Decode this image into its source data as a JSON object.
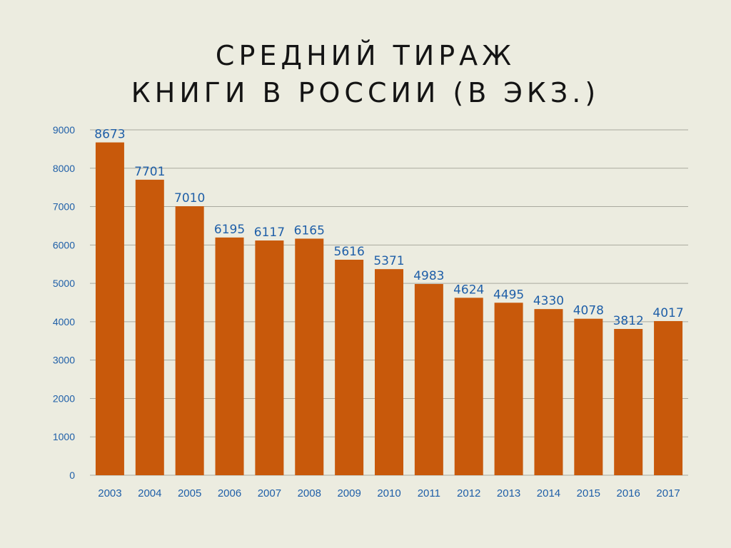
{
  "title_lines": [
    "СРЕДНИЙ ТИРАЖ",
    "КНИГИ В РОССИИ (В ЭКЗ.)"
  ],
  "colors": {
    "bar": "#c8590b",
    "grid": "#a9a99e",
    "label": "#1f5fa8",
    "background": "#ecece0"
  },
  "chart_data": {
    "type": "bar",
    "title": "СРЕДНИЙ ТИРАЖ КНИГИ В РОССИИ (В ЭКЗ.)",
    "xlabel": "",
    "ylabel": "",
    "categories": [
      "2003",
      "2004",
      "2005",
      "2006",
      "2007",
      "2008",
      "2009",
      "2010",
      "2011",
      "2012",
      "2013",
      "2014",
      "2015",
      "2016",
      "2017"
    ],
    "values": [
      8673,
      7701,
      7010,
      6195,
      6117,
      6165,
      5616,
      5371,
      4983,
      4624,
      4495,
      4330,
      4078,
      3812,
      4017
    ],
    "ylim": [
      0,
      9000
    ],
    "yticks": [
      0,
      1000,
      2000,
      3000,
      4000,
      5000,
      6000,
      7000,
      8000,
      9000
    ],
    "grid": true,
    "legend": "none",
    "data_labels": true
  }
}
